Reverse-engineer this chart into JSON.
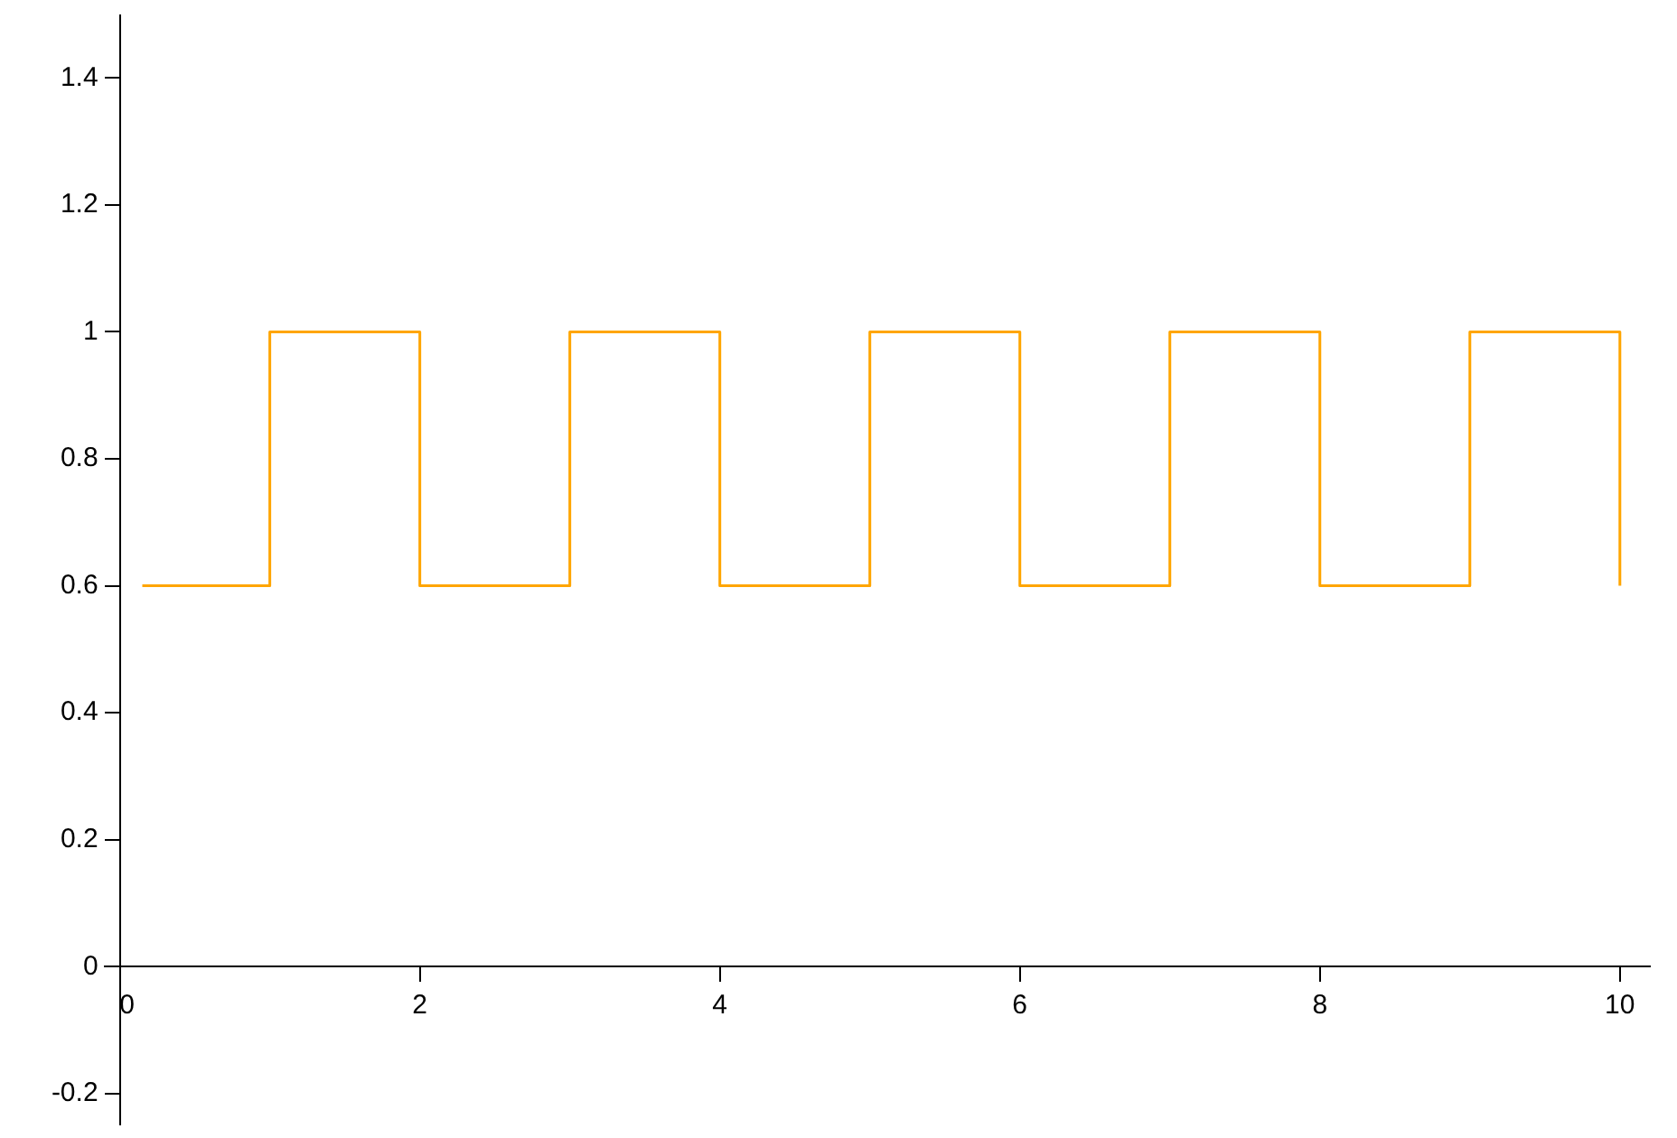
{
  "chart_data": {
    "type": "step",
    "x": [
      0.15,
      1,
      2,
      3,
      4,
      5,
      6,
      7,
      8,
      9,
      10
    ],
    "series": [
      {
        "color": "#ffa500",
        "values": [
          0.6,
          1,
          0.6,
          1,
          0.6,
          1,
          0.6,
          1,
          0.6,
          1,
          0.6
        ]
      }
    ],
    "xlim": [
      -0.1,
      10.2
    ],
    "ylim": [
      -0.25,
      1.5
    ],
    "xticks": [
      0,
      2,
      4,
      6,
      8,
      10
    ],
    "yticks": [
      -0.2,
      0,
      0.2,
      0.4,
      0.6,
      0.8,
      1,
      1.2,
      1.4
    ],
    "grid": false,
    "legend": false,
    "line_style": "solid",
    "marker": "none"
  }
}
